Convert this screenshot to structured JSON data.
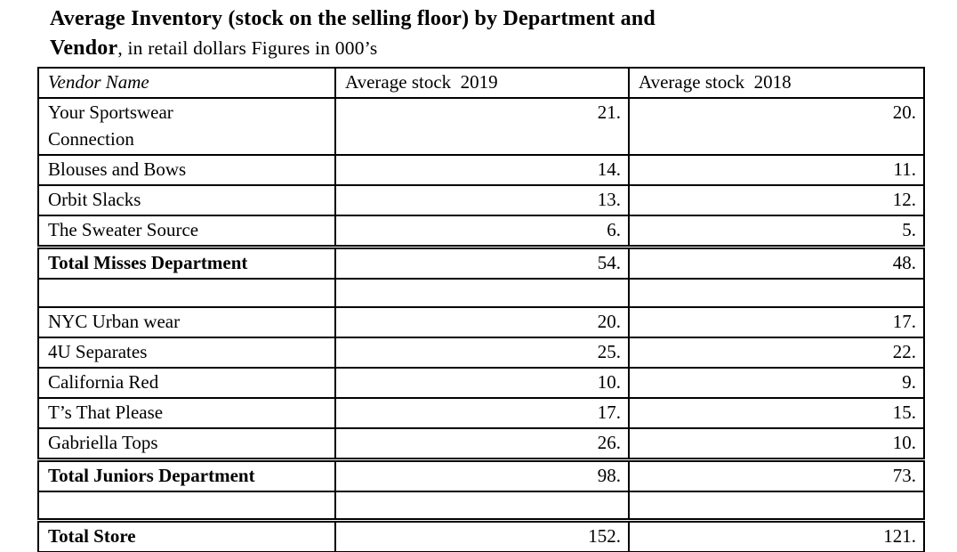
{
  "title": {
    "bold_line1": "Average Inventory (stock on the selling floor) by Department and",
    "bold_line2": "Vendor",
    "regular_suffix": ", in retail dollars Figures in 000’s"
  },
  "table": {
    "columns": [
      {
        "label": "Vendor Name"
      },
      {
        "label": "Average stock  2019"
      },
      {
        "label": "Average stock  2018"
      }
    ],
    "rows": [
      {
        "type": "vendor",
        "tall": true,
        "vendor": "Your Sportswear Connection",
        "stock_2019": "21.",
        "stock_2018": "20."
      },
      {
        "type": "vendor",
        "vendor": "Blouses and Bows",
        "stock_2019": "14.",
        "stock_2018": "11."
      },
      {
        "type": "vendor",
        "vendor": "Orbit Slacks",
        "stock_2019": "13.",
        "stock_2018": "12."
      },
      {
        "type": "vendor",
        "vendor": "The Sweater Source",
        "stock_2019": "6.",
        "stock_2018": "5."
      },
      {
        "type": "total",
        "double_top": true,
        "vendor": "Total Misses Department",
        "stock_2019": "54.",
        "stock_2018": "48."
      },
      {
        "type": "spacer",
        "vendor": "",
        "stock_2019": "",
        "stock_2018": ""
      },
      {
        "type": "vendor",
        "vendor": "NYC Urban wear",
        "stock_2019": "20.",
        "stock_2018": "17."
      },
      {
        "type": "vendor",
        "vendor": "4U Separates",
        "stock_2019": "25.",
        "stock_2018": "22."
      },
      {
        "type": "vendor",
        "vendor": "California Red",
        "stock_2019": "10.",
        "stock_2018": "9."
      },
      {
        "type": "vendor",
        "vendor": "T’s That Please",
        "stock_2019": "17.",
        "stock_2018": "15."
      },
      {
        "type": "vendor",
        "vendor": "Gabriella Tops",
        "stock_2019": "26.",
        "stock_2018": "10."
      },
      {
        "type": "total",
        "double_top": true,
        "vendor": "Total Juniors Department",
        "stock_2019": "98.",
        "stock_2018": "73."
      },
      {
        "type": "spacer",
        "vendor": "",
        "stock_2019": "",
        "stock_2018": ""
      },
      {
        "type": "total",
        "double_top": true,
        "vendor": "Total Store",
        "stock_2019": "152.",
        "stock_2018": "121."
      }
    ]
  },
  "colors": {
    "text": "#000000",
    "background": "#ffffff",
    "border": "#000000"
  }
}
